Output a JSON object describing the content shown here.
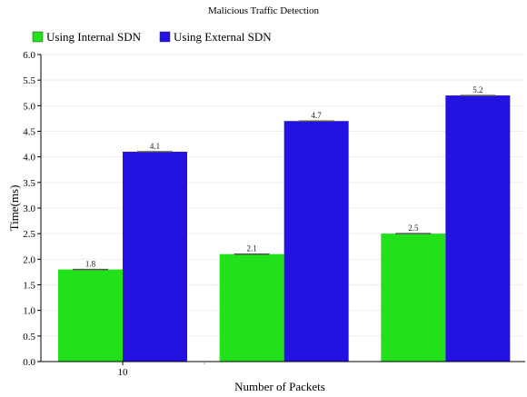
{
  "chart_data": {
    "type": "bar",
    "title": "Malicious Traffic Detection",
    "xlabel": "Number of Packets",
    "ylabel": "Time(ms)",
    "ylim": [
      0,
      6.0
    ],
    "yticks": [
      "0.0",
      "0.5",
      "1.0",
      "1.5",
      "2.0",
      "2.5",
      "3.0",
      "3.5",
      "4.0",
      "4.5",
      "5.0",
      "5.5",
      "6.0"
    ],
    "categories": [
      "10",
      "",
      ""
    ],
    "series": [
      {
        "name": "Using Internal SDN",
        "color": "#22e01a",
        "values": [
          1.8,
          2.1,
          2.5
        ],
        "labels": [
          "1.8",
          "2.1",
          "2.5"
        ]
      },
      {
        "name": "Using External SDN",
        "color": "#2412e0",
        "values": [
          4.1,
          4.7,
          5.2
        ],
        "labels": [
          "4.1",
          "4.7",
          "5.2"
        ]
      }
    ],
    "legend_position": "top-left",
    "grid": true
  }
}
